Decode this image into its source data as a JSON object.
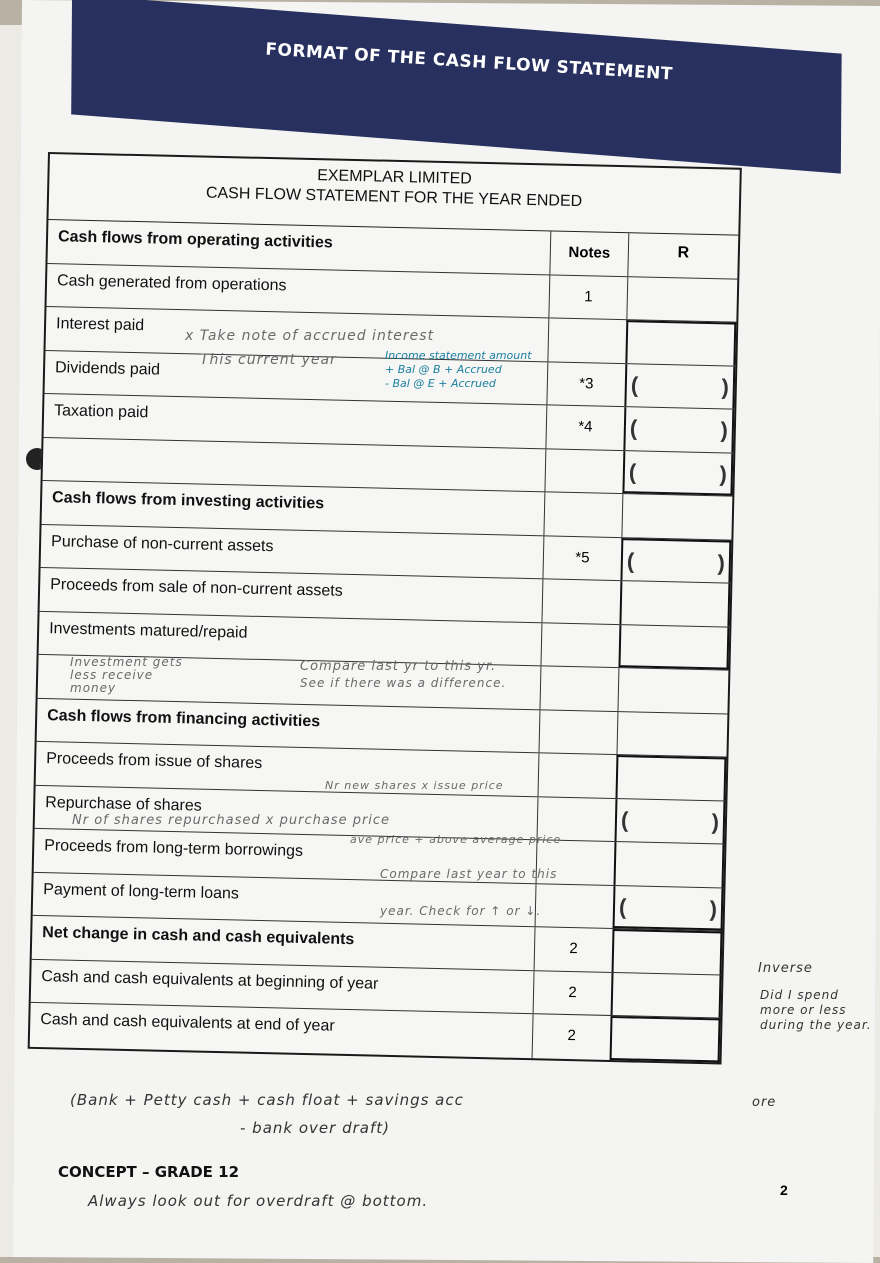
{
  "banner": {
    "title": "FORMAT OF THE CASH FLOW STATEMENT",
    "color": "#27305e"
  },
  "statement": {
    "company": "EXEMPLAR LIMITED",
    "title": "CASH FLOW STATEMENT FOR THE YEAR ENDED",
    "col_notes": "Notes",
    "col_r": "R",
    "rows": [
      {
        "label": "Cash flows from operating activities",
        "bold": true,
        "notes": ""
      },
      {
        "label": "Cash generated from operations",
        "notes": "1"
      },
      {
        "label": "Interest paid",
        "notes": ""
      },
      {
        "label": "Dividends paid",
        "notes": "*3"
      },
      {
        "label": "Taxation paid",
        "notes": "*4"
      },
      {
        "label": "",
        "notes": ""
      },
      {
        "label": "Cash flows from investing activities",
        "bold": true,
        "notes": ""
      },
      {
        "label": "Purchase of non-current assets",
        "notes": "*5"
      },
      {
        "label": "Proceeds from sale of non-current assets",
        "notes": ""
      },
      {
        "label": "Investments matured/repaid",
        "notes": ""
      },
      {
        "label": "",
        "notes": ""
      },
      {
        "label": "Cash flows from financing activities",
        "bold": true,
        "notes": ""
      },
      {
        "label": "Proceeds from issue of shares",
        "notes": ""
      },
      {
        "label": "Repurchase of shares",
        "notes": ""
      },
      {
        "label": "Proceeds from long-term borrowings",
        "notes": ""
      },
      {
        "label": "Payment of long-term loans",
        "notes": ""
      },
      {
        "label": "Net change in cash and cash equivalents",
        "bold": true,
        "notes": "2"
      },
      {
        "label": "Cash and cash equivalents at beginning of year",
        "notes": "2"
      },
      {
        "label": "Cash and cash equivalents at end of year",
        "notes": "2"
      }
    ]
  },
  "annotations": {
    "interest_1": "x Take note of accrued interest",
    "interest_2": "This current year",
    "interest_blue_1": "Income statement amount",
    "interest_blue_2": "+ Bal @ B + Accrued",
    "interest_blue_3": "- Bal @ E + Accrued",
    "investment_left": "Investment gets less receive money",
    "investment_right_1": "Compare last yr to this yr.",
    "investment_right_2": "See if there was a difference.",
    "issue_shares": "Nr new shares x issue price",
    "repurchase_1": "Nr of shares repurchased x purchase price",
    "repurchase_2": "ave price + above average price",
    "borrowings_1": "Compare last year to this",
    "borrowings_2": "year. Check for ↑ or ↓.",
    "side_1": "Inverse",
    "side_2": "Did I spend more or less during the year.",
    "side_3": "ore",
    "bottom_1": "(Bank + Petty cash + cash float + savings acc",
    "bottom_2": "- bank over draft)",
    "footer_note": "Always look out for overdraft @ bottom."
  },
  "footer": {
    "title": "CONCEPT – GRADE 12",
    "page": "2"
  }
}
